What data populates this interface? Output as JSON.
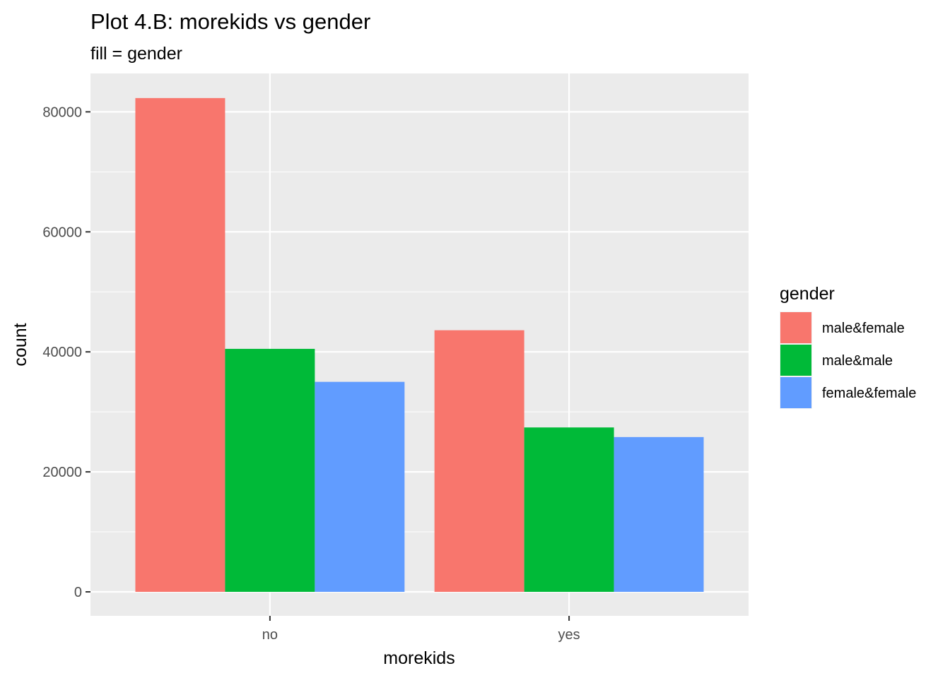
{
  "chart_data": {
    "type": "bar",
    "title": "Plot 4.B: morekids vs gender",
    "subtitle": "fill = gender",
    "xlabel": "morekids",
    "ylabel": "count",
    "categories": [
      "no",
      "yes"
    ],
    "series": [
      {
        "name": "male&female",
        "color": "#F8766D",
        "values": [
          82300,
          43600
        ]
      },
      {
        "name": "male&male",
        "color": "#00BA38",
        "values": [
          40500,
          27400
        ]
      },
      {
        "name": "female&female",
        "color": "#619CFF",
        "values": [
          35000,
          25800
        ]
      }
    ],
    "yticks": [
      0,
      20000,
      40000,
      60000,
      80000
    ],
    "ylim": [
      -4000,
      86400
    ],
    "legend": {
      "title": "gender",
      "position": "right"
    },
    "grid": true,
    "panel_background": "#EBEBEB"
  }
}
